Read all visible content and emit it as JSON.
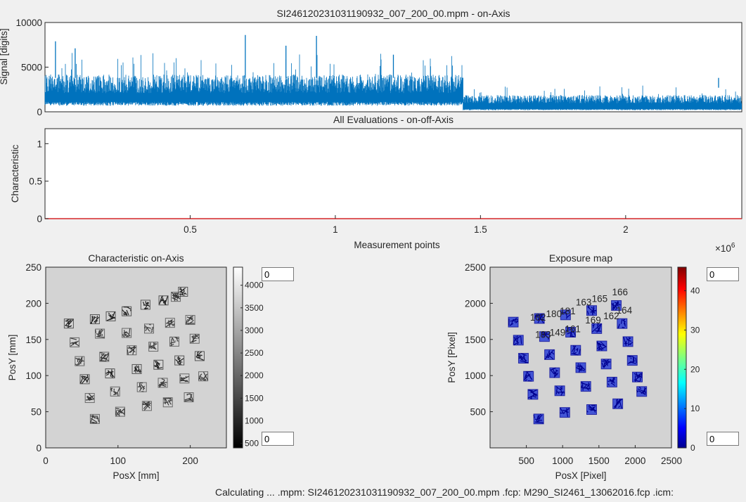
{
  "colors": {
    "signal_blue": "#0072bd",
    "char_red": "#d62728",
    "exposure_bg": "#d3d3d3"
  },
  "chart_data": [
    {
      "type": "line",
      "title": "SI246120231031190932_007_200_00.mpm - on-Axis",
      "xlabel": "",
      "ylabel": "Signal [digits]",
      "ylim": [
        0,
        10000
      ],
      "yticks": [
        "0",
        "5000",
        "10000"
      ],
      "x_range_points": [
        0,
        2400000
      ],
      "series": [
        {
          "segment": "first",
          "x_range": [
            0,
            1440000
          ],
          "band_low": 900,
          "band_high": 3800,
          "peaks": [
            [
              36000,
              7900
            ],
            [
              104000,
              7100
            ],
            [
              690000,
              8600
            ],
            [
              830000,
              7400
            ],
            [
              935000,
              8500
            ],
            [
              1200000,
              6400
            ],
            [
              2320000,
              2700
            ]
          ]
        },
        {
          "segment": "second",
          "x_range": [
            1440000,
            2400000
          ],
          "band_low": 250,
          "band_high": 1700
        }
      ]
    },
    {
      "type": "line",
      "title": "All Evaluations - on-off-Axis",
      "xlabel": "Measurement points",
      "ylabel": "Characteristic",
      "ylim": [
        0,
        1.2
      ],
      "xlim": [
        0,
        2400000
      ],
      "yticks": [
        "0",
        "0.5",
        "1"
      ],
      "xticks": [
        "0.5",
        "1",
        "1.5",
        "2"
      ],
      "x_exponent": "×10^6",
      "x_exponent_base": "×10",
      "x_exponent_power": "6",
      "series": [
        {
          "values_constant": 0
        }
      ]
    },
    {
      "type": "heatmap",
      "title": "Characteristic on-Axis",
      "xlabel": "PosX [mm]",
      "ylabel": "PosY [mm]",
      "xlim": [
        0,
        250
      ],
      "ylim": [
        0,
        250
      ],
      "xticks": [
        "0",
        "100",
        "200"
      ],
      "yticks": [
        "0",
        "50",
        "100",
        "150",
        "200",
        "250"
      ],
      "colorbar": {
        "ticks": [
          "500",
          "1000",
          "1500",
          "2000",
          "2500",
          "3000",
          "3500",
          "4000"
        ],
        "range": [
          400,
          4400
        ]
      },
      "blobs": [
        [
          32,
          172
        ],
        [
          40,
          146
        ],
        [
          47,
          120
        ],
        [
          54,
          95
        ],
        [
          61,
          69
        ],
        [
          68,
          40
        ],
        [
          68,
          178
        ],
        [
          75,
          158
        ],
        [
          81,
          126
        ],
        [
          89,
          103
        ],
        [
          96,
          78
        ],
        [
          103,
          50
        ],
        [
          90,
          182
        ],
        [
          112,
          159
        ],
        [
          119,
          135
        ],
        [
          126,
          109
        ],
        [
          133,
          84
        ],
        [
          140,
          58
        ],
        [
          112,
          189
        ],
        [
          143,
          165
        ],
        [
          149,
          140
        ],
        [
          156,
          115
        ],
        [
          162,
          90
        ],
        [
          169,
          63
        ],
        [
          138,
          198
        ],
        [
          172,
          173
        ],
        [
          178,
          147
        ],
        [
          185,
          121
        ],
        [
          192,
          96
        ],
        [
          198,
          70
        ],
        [
          163,
          204
        ],
        [
          200,
          177
        ],
        [
          206,
          151
        ],
        [
          213,
          127
        ],
        [
          218,
          99
        ],
        [
          180,
          209
        ],
        [
          190,
          216
        ]
      ]
    },
    {
      "type": "heatmap",
      "title": "Exposure map",
      "xlabel": "PosX [Pixel]",
      "ylabel": "PosY [Pixel]",
      "xlim": [
        0,
        2500
      ],
      "ylim": [
        0,
        2500
      ],
      "xticks": [
        "500",
        "1000",
        "1500",
        "2000",
        "2500"
      ],
      "yticks": [
        "500",
        "1000",
        "1500",
        "2000",
        "2500"
      ],
      "colorbar": {
        "ticks": [
          "0",
          "10",
          "20",
          "30",
          "40"
        ],
        "range": [
          0,
          46
        ]
      },
      "blobs": [
        [
          320,
          1740
        ],
        [
          390,
          1490
        ],
        [
          460,
          1240
        ],
        [
          530,
          990
        ],
        [
          590,
          740
        ],
        [
          670,
          400
        ],
        [
          680,
          1790
        ],
        [
          750,
          1540
        ],
        [
          820,
          1290
        ],
        [
          890,
          1040
        ],
        [
          960,
          790
        ],
        [
          1030,
          490
        ],
        [
          1040,
          1840
        ],
        [
          1110,
          1600
        ],
        [
          1180,
          1350
        ],
        [
          1250,
          1110
        ],
        [
          1320,
          850
        ],
        [
          1400,
          530
        ],
        [
          1400,
          1900
        ],
        [
          1470,
          1650
        ],
        [
          1540,
          1410
        ],
        [
          1600,
          1160
        ],
        [
          1680,
          910
        ],
        [
          1760,
          610
        ],
        [
          1740,
          1970
        ],
        [
          1820,
          1720
        ],
        [
          1900,
          1470
        ],
        [
          1960,
          1210
        ],
        [
          2030,
          980
        ],
        [
          2090,
          780
        ]
      ],
      "labels": [
        {
          "text": "182",
          "x": 660,
          "y": 1760
        },
        {
          "text": "183",
          "x": 730,
          "y": 1520
        },
        {
          "text": "180",
          "x": 880,
          "y": 1810
        },
        {
          "text": "149",
          "x": 930,
          "y": 1550
        },
        {
          "text": "181",
          "x": 1070,
          "y": 1850
        },
        {
          "text": "161",
          "x": 1140,
          "y": 1600
        },
        {
          "text": "163",
          "x": 1290,
          "y": 1970
        },
        {
          "text": "169",
          "x": 1420,
          "y": 1720
        },
        {
          "text": "165",
          "x": 1510,
          "y": 2020
        },
        {
          "text": "162",
          "x": 1670,
          "y": 1780
        },
        {
          "text": "166",
          "x": 1790,
          "y": 2110
        },
        {
          "text": "164",
          "x": 1850,
          "y": 1860
        }
      ]
    }
  ],
  "inputs": {
    "char_max": "0",
    "char_min": "0",
    "exp_max": "0",
    "exp_min": "0"
  },
  "status_text": "Calculating ...  .mpm: SI246120231031190932_007_200_00.mpm  .fcp: M290_SI2461_13062016.fcp  .icm:"
}
